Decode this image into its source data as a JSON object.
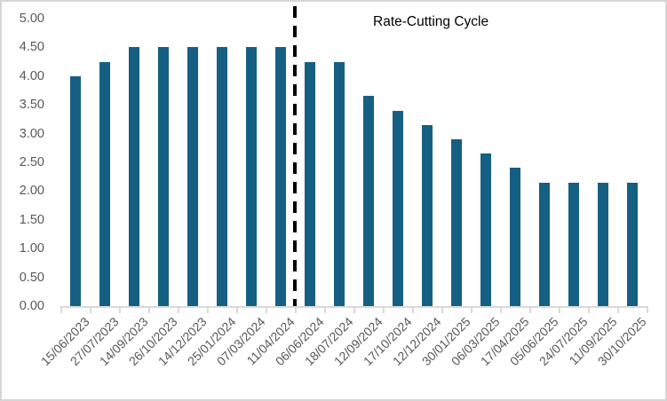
{
  "chart_data": {
    "type": "bar",
    "title": "",
    "xlabel": "",
    "ylabel": "",
    "annotation": "Rate-Cutting Cycle",
    "categories": [
      "15/06/2023",
      "27/07/2023",
      "14/09/2023",
      "26/10/2023",
      "14/12/2023",
      "25/01/2024",
      "07/03/2024",
      "11/04/2024",
      "06/06/2024",
      "18/07/2024",
      "12/09/2024",
      "17/10/2024",
      "12/12/2024",
      "30/01/2025",
      "06/03/2025",
      "17/04/2025",
      "05/06/2025",
      "24/07/2025",
      "11/09/2025",
      "30/10/2025"
    ],
    "values": [
      4.0,
      4.25,
      4.5,
      4.5,
      4.5,
      4.5,
      4.5,
      4.5,
      4.25,
      4.25,
      3.65,
      3.4,
      3.15,
      2.9,
      2.65,
      2.4,
      2.15,
      2.15,
      2.15,
      2.15
    ],
    "ylim": [
      0,
      5
    ],
    "ytick_step": 0.5,
    "ytick_labels": [
      "0.00",
      "0.50",
      "1.00",
      "1.50",
      "2.00",
      "2.50",
      "3.00",
      "3.50",
      "4.00",
      "4.50",
      "5.00"
    ],
    "grid": false,
    "legend": false,
    "divider_before_index": 8,
    "colors": {
      "bar": "#156082",
      "axis": "#d9d9d9",
      "tick_labels": "#595959",
      "divider": "#000000",
      "background": "#ffffff",
      "border": "#d6d6d6"
    }
  }
}
